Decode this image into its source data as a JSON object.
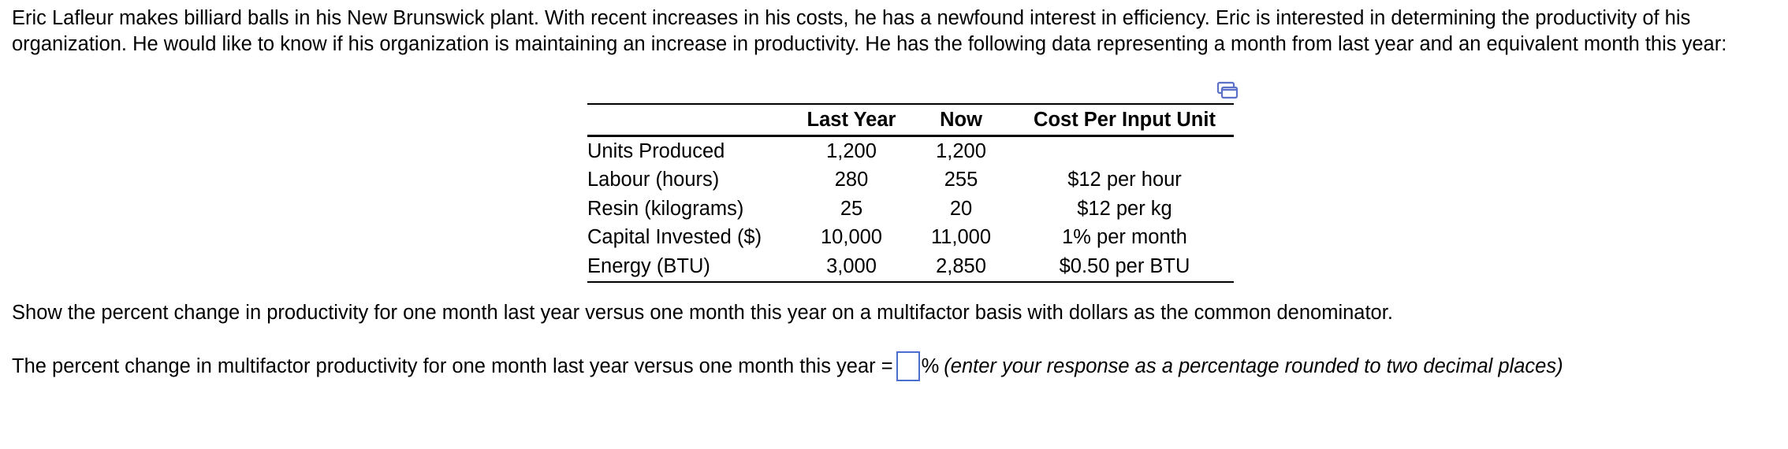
{
  "intro": "Eric Lafleur makes billiard balls in his New Brunswick plant. With recent increases in his costs, he has a newfound interest in efficiency. Eric is interested in determining the productivity of his organization. He would like to know if his organization is maintaining an increase in productivity. He has the following data representing a month from last year and an equivalent month this year:",
  "copy_icon": "copy-icon",
  "table": {
    "headers": [
      "",
      "Last Year",
      "Now",
      "Cost Per Input Unit"
    ],
    "rows": [
      {
        "label": "Units Produced",
        "last_year": "1,200",
        "now": "1,200",
        "cost": ""
      },
      {
        "label": "Labour (hours)",
        "last_year": "280",
        "now": "255",
        "cost": "$12 per hour"
      },
      {
        "label": "Resin (kilograms)",
        "last_year": "25",
        "now": "20",
        "cost": "$12 per kg"
      },
      {
        "label": "Capital Invested ($)",
        "last_year": "10,000",
        "now": "11,000",
        "cost": "1% per month"
      },
      {
        "label": "Energy (BTU)",
        "last_year": "3,000",
        "now": "2,850",
        "cost": "$0.50 per BTU"
      }
    ]
  },
  "question": "Show the percent change in productivity for one month last year versus one month this year on a multifactor basis with dollars as the common denominator.",
  "answer": {
    "prefix": "The percent change in multifactor productivity for one month last year versus one month this year =",
    "value": "",
    "suffix": "%",
    "hint": "(enter your response as a percentage rounded to two decimal places)"
  },
  "colors": {
    "input_border": "#4a6fd0",
    "icon": "#5b72c8"
  }
}
